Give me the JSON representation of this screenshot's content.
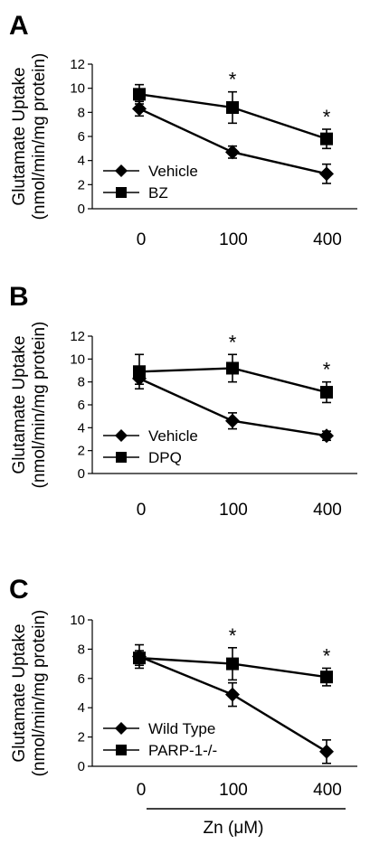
{
  "figure": {
    "shared_xlabel": "Zn (μM)"
  },
  "chart_data": [
    {
      "panel": "A",
      "type": "line",
      "ylabel_line1": "Glutamate Uptake",
      "ylabel_line2": "(nmol/min/mg protein)",
      "ylim": [
        0,
        12
      ],
      "yticks": [
        0,
        2,
        4,
        6,
        8,
        10,
        12
      ],
      "categories": [
        "0",
        "100",
        "400"
      ],
      "series": [
        {
          "name": "Vehicle",
          "marker": "diamond",
          "values": [
            8.3,
            4.7,
            2.9
          ],
          "errors": [
            0.6,
            0.5,
            0.8
          ]
        },
        {
          "name": "BZ",
          "marker": "square",
          "values": [
            9.5,
            8.4,
            5.8
          ],
          "errors": [
            0.8,
            1.3,
            0.8
          ]
        }
      ],
      "significance": [
        "",
        "*",
        "*"
      ],
      "legend": "bottom-left"
    },
    {
      "panel": "B",
      "type": "line",
      "ylabel_line1": "Glutamate Uptake",
      "ylabel_line2": "(nmol/min/mg protein)",
      "ylim": [
        0,
        12
      ],
      "yticks": [
        0,
        2,
        4,
        6,
        8,
        10,
        12
      ],
      "categories": [
        "0",
        "100",
        "400"
      ],
      "series": [
        {
          "name": "Vehicle",
          "marker": "diamond",
          "values": [
            8.3,
            4.6,
            3.3
          ],
          "errors": [
            0.5,
            0.7,
            0.4
          ]
        },
        {
          "name": "DPQ",
          "marker": "square",
          "values": [
            8.9,
            9.2,
            7.1
          ],
          "errors": [
            1.5,
            1.2,
            0.9
          ]
        }
      ],
      "significance": [
        "",
        "*",
        "*"
      ],
      "legend": "bottom-left"
    },
    {
      "panel": "C",
      "type": "line",
      "ylabel_line1": "Glutamate Uptake",
      "ylabel_line2": "(nmol/min/mg protein)",
      "ylim": [
        0,
        10
      ],
      "yticks": [
        0,
        2,
        4,
        6,
        8,
        10
      ],
      "categories": [
        "0",
        "100",
        "400"
      ],
      "series": [
        {
          "name": "Wild Type",
          "marker": "diamond",
          "values": [
            7.5,
            4.9,
            1.0
          ],
          "errors": [
            0.8,
            0.8,
            0.8
          ]
        },
        {
          "name": "PARP-1-/-",
          "marker": "square",
          "values": [
            7.4,
            7.0,
            6.1
          ],
          "errors": [
            0.5,
            1.1,
            0.6
          ]
        }
      ],
      "significance": [
        "",
        "*",
        "*"
      ],
      "legend": "bottom-left"
    }
  ]
}
